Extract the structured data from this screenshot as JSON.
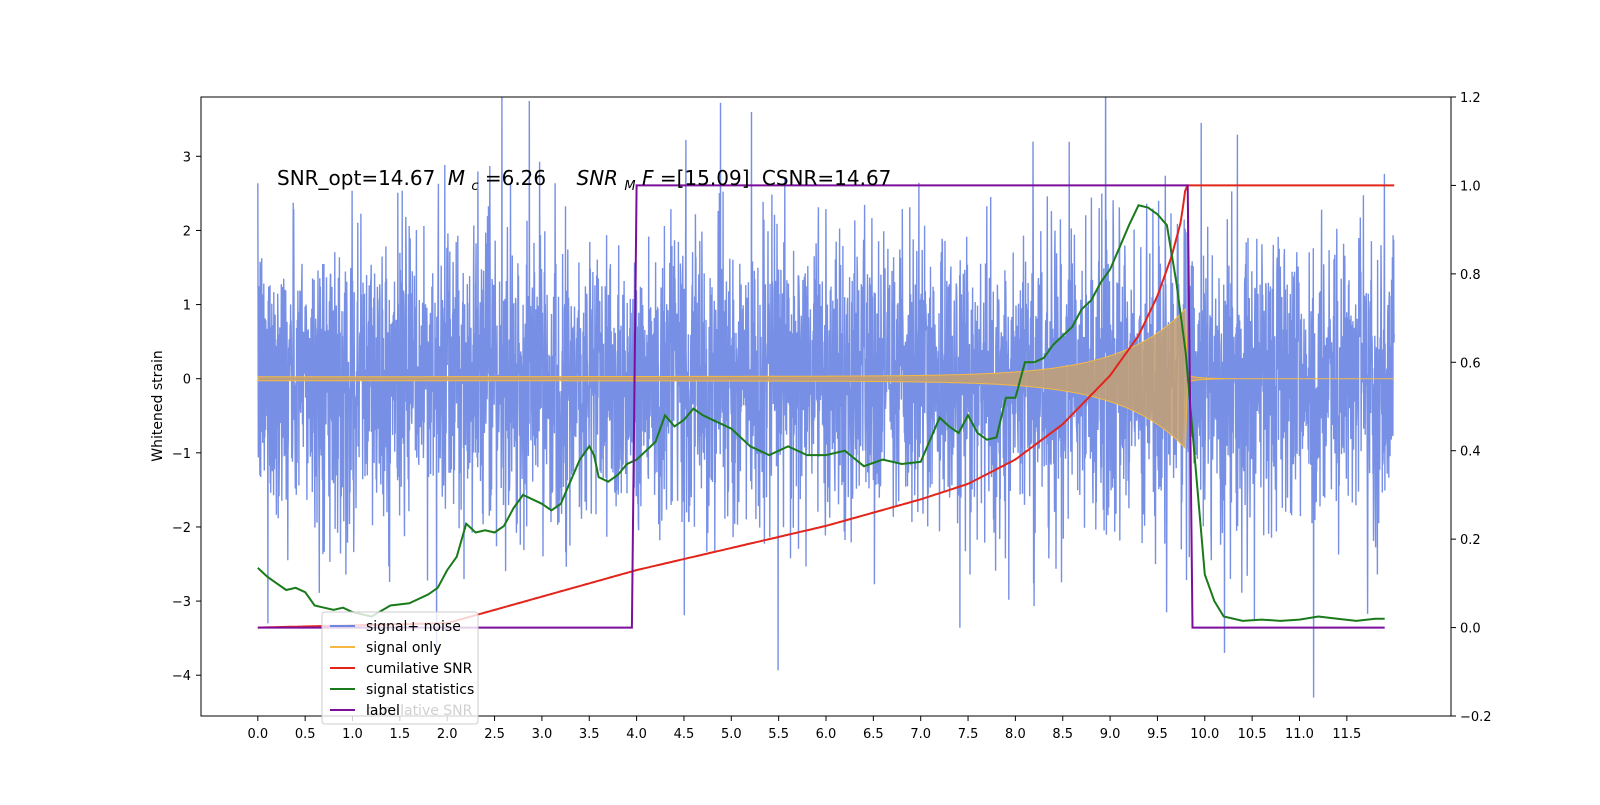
{
  "chart_data": {
    "type": "line",
    "annotation": {
      "snr_opt": "SNR_opt=14.67",
      "mc_symbol": "M",
      "mc_sub": "c",
      "mc_value": "=6.26",
      "snrmf_symbol": "SNR",
      "snrmf_sub": "M",
      "snrmf_F": "F",
      "snrmf_value": "=[15.09]",
      "csnr": "CSNR=14.67"
    },
    "ylabel_left": "Whitened strain",
    "xlim": [
      -0.6,
      12.6
    ],
    "ylim_left": [
      -4.55,
      3.8
    ],
    "ylim_right": [
      -0.2,
      1.2
    ],
    "x_ticks": [
      "0.0",
      "0.5",
      "1.0",
      "1.5",
      "2.0",
      "2.5",
      "3.0",
      "3.5",
      "4.0",
      "4.5",
      "5.0",
      "5.5",
      "6.0",
      "6.5",
      "7.0",
      "7.5",
      "8.0",
      "8.5",
      "9.0",
      "9.5",
      "10.0",
      "10.5",
      "11.0",
      "11.5"
    ],
    "y_left_ticks": [
      "3",
      "2",
      "1",
      "0",
      "−1",
      "−2",
      "−3",
      "−4"
    ],
    "y_left_tick_values": [
      3,
      2,
      1,
      0,
      -1,
      -2,
      -3,
      -4
    ],
    "y_right_ticks": [
      "1.2",
      "1.0",
      "0.8",
      "0.6",
      "0.4",
      "0.2",
      "0.0",
      "−0.2"
    ],
    "y_right_tick_values": [
      1.2,
      1.0,
      0.8,
      0.6,
      0.4,
      0.2,
      0.0,
      -0.2
    ],
    "series": [
      {
        "name": "signal+ noise",
        "color": "#6b87e3",
        "axis": "left",
        "noise_std": 0.95,
        "x_range": [
          0.0,
          12.0
        ]
      },
      {
        "name": "signal only",
        "color": "#f5b942",
        "axis": "left",
        "chirp_start_amp": 0.02,
        "chirp_peak_amp": 0.85,
        "merger_time": 9.8,
        "x_range": [
          0.0,
          12.0
        ]
      },
      {
        "name": "cumilative SNR",
        "color": "#e3241b",
        "axis": "right",
        "x": [
          0.0,
          2.0,
          3.0,
          4.0,
          5.0,
          6.0,
          7.0,
          7.5,
          8.0,
          8.5,
          9.0,
          9.3,
          9.5,
          9.65,
          9.75,
          9.8,
          12.0
        ],
        "y": [
          0.0,
          0.01,
          0.07,
          0.13,
          0.18,
          0.23,
          0.29,
          0.325,
          0.38,
          0.46,
          0.57,
          0.66,
          0.75,
          0.84,
          0.92,
          1.0,
          1.0
        ]
      },
      {
        "name": "signal statistics",
        "color": "#1a7a1a",
        "axis": "right",
        "x": [
          0.0,
          0.1,
          0.2,
          0.3,
          0.4,
          0.5,
          0.6,
          0.7,
          0.8,
          0.9,
          1.0,
          1.2,
          1.4,
          1.6,
          1.8,
          1.9,
          2.0,
          2.1,
          2.2,
          2.3,
          2.4,
          2.5,
          2.6,
          2.7,
          2.8,
          2.9,
          3.0,
          3.1,
          3.2,
          3.3,
          3.4,
          3.5,
          3.55,
          3.6,
          3.7,
          3.8,
          3.9,
          4.0,
          4.1,
          4.2,
          4.3,
          4.4,
          4.5,
          4.6,
          4.7,
          4.8,
          4.9,
          5.0,
          5.2,
          5.4,
          5.6,
          5.8,
          6.0,
          6.2,
          6.4,
          6.6,
          6.8,
          7.0,
          7.1,
          7.2,
          7.3,
          7.4,
          7.5,
          7.6,
          7.7,
          7.8,
          7.9,
          8.0,
          8.1,
          8.2,
          8.3,
          8.4,
          8.5,
          8.6,
          8.7,
          8.8,
          8.9,
          9.0,
          9.1,
          9.2,
          9.3,
          9.4,
          9.5,
          9.6,
          9.7,
          9.8,
          9.9,
          10.0,
          10.1,
          10.2,
          10.4,
          10.6,
          10.8,
          11.0,
          11.2,
          11.4,
          11.6,
          11.8,
          11.9
        ],
        "y": [
          0.135,
          0.115,
          0.1,
          0.085,
          0.09,
          0.08,
          0.05,
          0.045,
          0.04,
          0.045,
          0.035,
          0.025,
          0.05,
          0.055,
          0.075,
          0.09,
          0.13,
          0.16,
          0.235,
          0.215,
          0.22,
          0.215,
          0.23,
          0.27,
          0.3,
          0.29,
          0.28,
          0.265,
          0.28,
          0.33,
          0.38,
          0.41,
          0.39,
          0.34,
          0.33,
          0.345,
          0.37,
          0.38,
          0.4,
          0.42,
          0.48,
          0.455,
          0.47,
          0.495,
          0.48,
          0.47,
          0.46,
          0.45,
          0.41,
          0.39,
          0.41,
          0.39,
          0.39,
          0.4,
          0.365,
          0.38,
          0.37,
          0.375,
          0.425,
          0.475,
          0.455,
          0.44,
          0.48,
          0.44,
          0.425,
          0.43,
          0.52,
          0.52,
          0.6,
          0.6,
          0.61,
          0.64,
          0.66,
          0.68,
          0.72,
          0.74,
          0.78,
          0.81,
          0.86,
          0.91,
          0.955,
          0.95,
          0.935,
          0.91,
          0.78,
          0.62,
          0.37,
          0.12,
          0.06,
          0.025,
          0.015,
          0.018,
          0.015,
          0.018,
          0.025,
          0.02,
          0.015,
          0.02,
          0.02
        ]
      },
      {
        "name": "label",
        "color": "#7b0f9c",
        "axis": "right",
        "x": [
          0.0,
          3.95,
          4.0,
          9.82,
          9.87,
          11.9
        ],
        "y": [
          0.0,
          0.0,
          1.0,
          1.0,
          0.0,
          0.0
        ]
      }
    ],
    "legend": {
      "placement": "lower-left",
      "entries": [
        "signal+ noise",
        "signal only",
        "cumilative SNR",
        "signal statistics",
        "label"
      ],
      "ghost_text": "cumilative SNR"
    },
    "grid": false
  }
}
